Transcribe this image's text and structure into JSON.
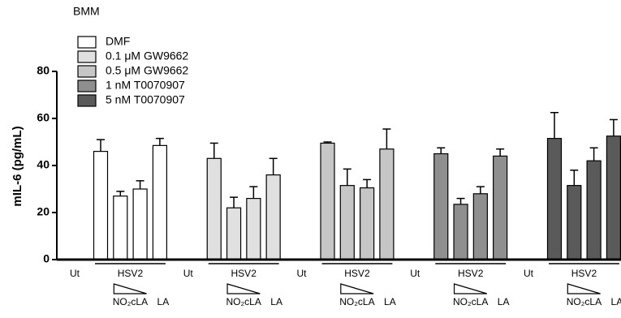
{
  "chart_data": {
    "type": "bar",
    "title": "BMM",
    "y_label": "mIL-6 (pg/mL)",
    "categories": [
      "Ut",
      null,
      null,
      null,
      null
    ],
    "annotations": {
      "treatment": "HSV2",
      "compound": "NO₂cLA",
      "control": "LA"
    },
    "ylim": [
      0,
      80
    ],
    "yticks": [
      0,
      20,
      40,
      60,
      80
    ],
    "series": [
      {
        "name": "DMF",
        "color": "#ffffff",
        "values": [
          0,
          46,
          27,
          30,
          48.5
        ],
        "errors": [
          0,
          5,
          2,
          3.5,
          3
        ]
      },
      {
        "name": "0.1 μM GW9662",
        "color": "#e0e0e0",
        "values": [
          0,
          43,
          22,
          26,
          36
        ],
        "errors": [
          0,
          6.5,
          4.5,
          5,
          7
        ]
      },
      {
        "name": "0.5 μM GW9662",
        "color": "#c6c6c6",
        "values": [
          0,
          49.5,
          31.5,
          30.5,
          47
        ],
        "errors": [
          0,
          0.5,
          7,
          3.5,
          8.5
        ]
      },
      {
        "name": "1 nM T0070907",
        "color": "#8f8f8f",
        "values": [
          0,
          45,
          23.5,
          28,
          44
        ],
        "errors": [
          0,
          2.5,
          2.5,
          3,
          3
        ]
      },
      {
        "name": "5 nM T0070907",
        "color": "#5a5a5a",
        "values": [
          0,
          51.5,
          31.5,
          42,
          52.5
        ],
        "errors": [
          0,
          11,
          6.5,
          5.5,
          7
        ]
      }
    ]
  }
}
